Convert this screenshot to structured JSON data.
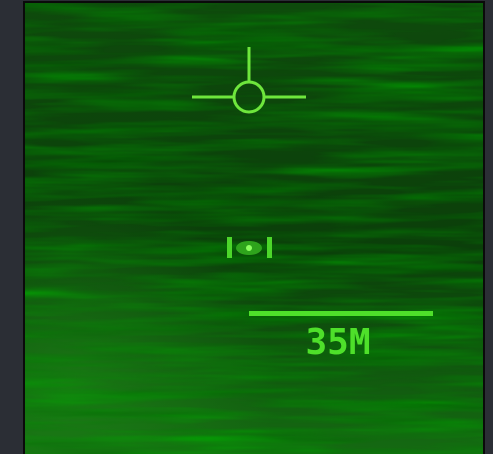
{
  "hud": {
    "range_label": "35M"
  }
}
